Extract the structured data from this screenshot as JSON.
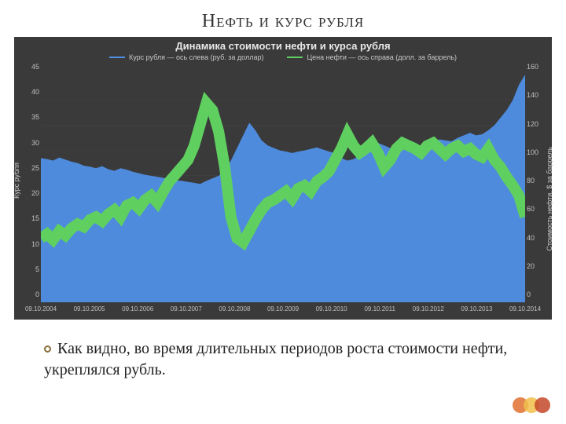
{
  "slide": {
    "title": "Нефть и курс рубля",
    "caption": "Как видно, во время длительных периодов роста стоимости нефти, укреплялся рубль."
  },
  "chart": {
    "type": "dual-axis-line-area",
    "title": "Динамика стоимости нефти и курса рубля",
    "background_color": "#3a3a3a",
    "grid_color": "#4a4a4a",
    "text_color": "#c8c8c8",
    "legend": [
      {
        "label": "Курс рубля — ось слева (руб. за доллар)",
        "color": "#4f8fe6"
      },
      {
        "label": "Цена нефти — ось справа (долл. за баррель)",
        "color": "#5fd060"
      }
    ],
    "x": {
      "ticks": [
        "09.10.2004",
        "09.10.2005",
        "09.10.2006",
        "09.10.2007",
        "09.10.2008",
        "09.10.2009",
        "09.10.2010",
        "09.10.2011",
        "09.10.2012",
        "09.10.2013",
        "09.10.2014"
      ]
    },
    "y_left": {
      "label": "Курс рубля",
      "min": 0,
      "max": 45,
      "step": 5,
      "ticks": [
        0,
        5,
        10,
        15,
        20,
        25,
        30,
        35,
        40,
        45
      ]
    },
    "y_right": {
      "label": "Стоимость нефти, $ за баррель",
      "min": 0,
      "max": 160,
      "step": 20,
      "ticks": [
        0,
        20,
        40,
        60,
        80,
        100,
        120,
        140,
        160
      ]
    },
    "series_ruble": {
      "color": "#4f8fe6",
      "fill_opacity": 0.95,
      "axis": "left",
      "data": [
        28.5,
        28.3,
        28.0,
        28.6,
        28.2,
        27.8,
        27.5,
        27.0,
        26.8,
        26.5,
        26.9,
        26.3,
        26.0,
        26.5,
        26.2,
        25.8,
        25.5,
        25.2,
        25.0,
        24.8,
        24.6,
        24.3,
        24.1,
        24.0,
        23.8,
        23.6,
        23.4,
        24.0,
        24.5,
        25.0,
        26.0,
        28.0,
        30.5,
        33.0,
        35.5,
        34.0,
        32.0,
        31.0,
        30.5,
        30.0,
        29.8,
        29.5,
        29.8,
        30.0,
        30.3,
        30.6,
        30.2,
        29.8,
        29.5,
        28.5,
        28.0,
        28.3,
        29.0,
        29.8,
        30.5,
        31.5,
        31.0,
        30.5,
        31.0,
        31.4,
        31.8,
        31.0,
        30.5,
        31.0,
        31.6,
        32.2,
        32.0,
        31.8,
        32.5,
        33.0,
        33.5,
        33.0,
        33.2,
        34.0,
        35.0,
        36.5,
        38.0,
        40.0,
        43.0,
        45.0
      ]
    },
    "series_oil": {
      "color": "#5fd060",
      "line_width": 1.4,
      "axis": "right",
      "data": [
        45,
        48,
        44,
        50,
        47,
        52,
        55,
        53,
        58,
        60,
        57,
        62,
        65,
        60,
        68,
        70,
        66,
        72,
        75,
        70,
        78,
        85,
        90,
        95,
        100,
        110,
        125,
        140,
        135,
        120,
        95,
        60,
        45,
        42,
        50,
        58,
        65,
        70,
        72,
        75,
        78,
        73,
        80,
        82,
        78,
        85,
        88,
        92,
        100,
        108,
        118,
        110,
        105,
        108,
        112,
        105,
        95,
        100,
        108,
        112,
        110,
        108,
        105,
        110,
        112,
        108,
        104,
        108,
        110,
        106,
        108,
        104,
        102,
        108,
        100,
        95,
        88,
        82,
        75,
        60
      ]
    },
    "corner_dots": [
      "#e07030",
      "#f0c04a",
      "#c44828"
    ]
  }
}
